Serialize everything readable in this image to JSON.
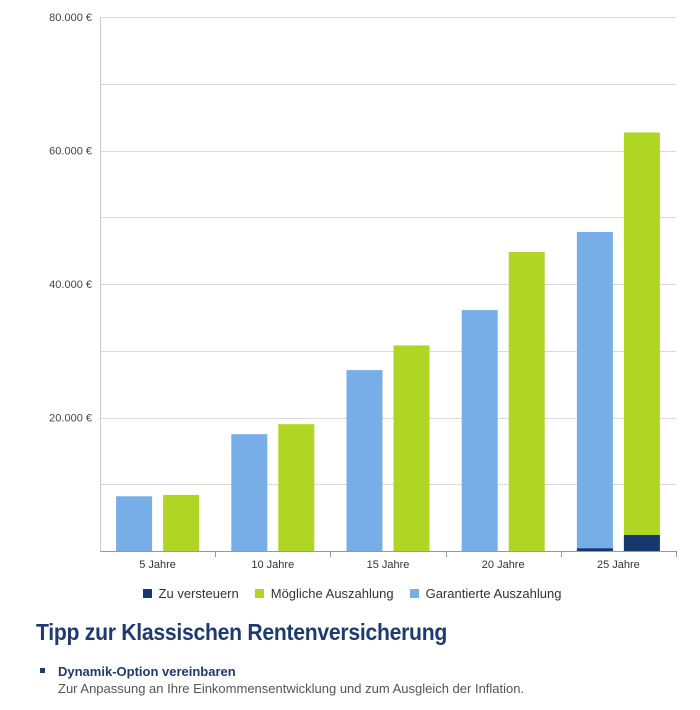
{
  "chart_data": {
    "type": "bar",
    "categories": [
      "5 Jahre",
      "10 Jahre",
      "15 Jahre",
      "20 Jahre",
      "25 Jahre"
    ],
    "series": [
      {
        "name": "Garantierte Auszahlung",
        "color": "#78aee8",
        "values": [
          8200,
          17500,
          27100,
          36100,
          47800
        ],
        "taxable": [
          0,
          0,
          0,
          0,
          400
        ]
      },
      {
        "name": "Mögliche Auszahlung",
        "color": "#b0d624",
        "values": [
          8400,
          19000,
          30800,
          44800,
          62700
        ],
        "taxable": [
          0,
          0,
          0,
          0,
          2400
        ]
      }
    ],
    "taxable_series": {
      "name": "Zu versteuern",
      "color": "#16386e"
    },
    "ylim": [
      0,
      80000
    ],
    "yticks": [
      20000,
      40000,
      60000,
      80000
    ],
    "ytick_labels": [
      "20.000 €",
      "40.000 €",
      "60.000 €",
      "80.000 €"
    ],
    "legend": [
      "Zu versteuern",
      "Mögliche Auszahlung",
      "Garantierte Auszahlung"
    ],
    "legend_position": "bottom",
    "grid": true
  },
  "legend": {
    "items": [
      {
        "label": "Zu versteuern",
        "color": "#16386e"
      },
      {
        "label": "Mögliche Auszahlung",
        "color": "#b0d624"
      },
      {
        "label": "Garantierte Auszahlung",
        "color": "#78aee8"
      }
    ]
  },
  "tip": {
    "title": "Tipp zur Klassischen Rentenversicherung",
    "items": [
      {
        "heading": "Dynamik-Option vereinbaren",
        "text": "Zur Anpassung an Ihre Einkommensentwicklung und zum Ausgleich der Inflation."
      }
    ]
  }
}
